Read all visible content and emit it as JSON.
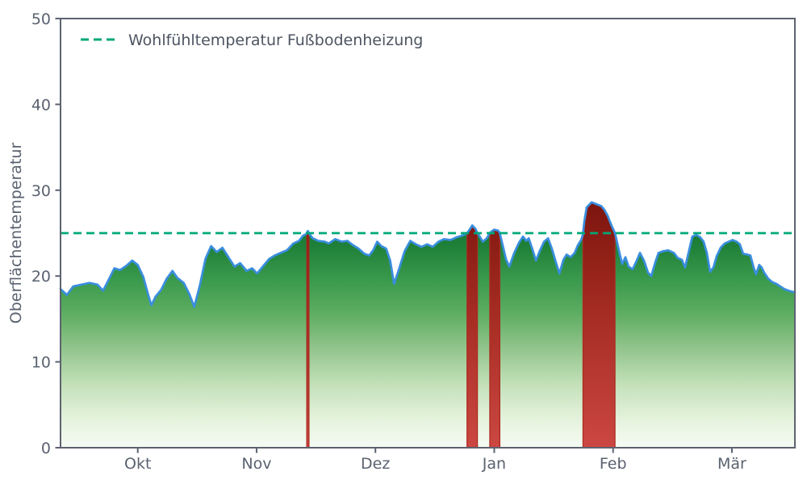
{
  "chart_data": {
    "type": "area",
    "title": "",
    "xlabel": "",
    "ylabel": "Oberflächentemperatur",
    "ylim": [
      0,
      50
    ],
    "yticks": [
      0,
      10,
      20,
      30,
      40,
      50
    ],
    "xtick_labels": [
      "Okt",
      "Nov",
      "Dez",
      "Jan",
      "Feb",
      "Mär"
    ],
    "x_unit": "months relative to Okt tick (0 = Okt, 5 = Mär)",
    "x_range": [
      -0.65,
      5.53
    ],
    "grid": false,
    "legend_position": "upper-left",
    "legend_label": "Wohlfühltemperatur Fußbodenheizung",
    "comfort_line": {
      "value": 25,
      "style": "dashed",
      "color": "#00a878"
    },
    "exceedance_rule": "area filled red from 0 up to curve where temperature > 25",
    "colors": {
      "line": "#3a8ede",
      "comfort": "#00a878",
      "axis": "#5c6370",
      "band_edge": "#aa2a1f",
      "green_gradient": [
        [
          0.0,
          "#0e6a2b"
        ],
        [
          0.18,
          "#1f8039"
        ],
        [
          0.32,
          "#3a9a4d"
        ],
        [
          0.46,
          "#5fae63"
        ],
        [
          0.6,
          "#93c58d"
        ],
        [
          0.74,
          "#c2e0b8"
        ],
        [
          0.88,
          "#e4f2dc"
        ],
        [
          1.0,
          "#f6fbf3"
        ]
      ],
      "red_gradient": [
        [
          0.0,
          "#7c150e"
        ],
        [
          0.45,
          "#a52c22"
        ],
        [
          1.0,
          "#cc4742"
        ]
      ]
    },
    "series": [
      {
        "name": "Oberflächentemperatur",
        "points": [
          [
            -0.65,
            18.5
          ],
          [
            -0.597,
            17.8
          ],
          [
            -0.543,
            18.8
          ],
          [
            -0.475,
            19.0
          ],
          [
            -0.407,
            19.2
          ],
          [
            -0.339,
            19.0
          ],
          [
            -0.292,
            18.3
          ],
          [
            -0.244,
            19.6
          ],
          [
            -0.197,
            20.9
          ],
          [
            -0.149,
            20.7
          ],
          [
            -0.095,
            21.2
          ],
          [
            -0.047,
            21.8
          ],
          [
            0.0,
            21.3
          ],
          [
            0.047,
            19.9
          ],
          [
            0.088,
            17.8
          ],
          [
            0.115,
            16.6
          ],
          [
            0.149,
            17.6
          ],
          [
            0.197,
            18.4
          ],
          [
            0.244,
            19.7
          ],
          [
            0.292,
            20.6
          ],
          [
            0.332,
            19.8
          ],
          [
            0.387,
            19.2
          ],
          [
            0.434,
            17.9
          ],
          [
            0.475,
            16.4
          ],
          [
            0.522,
            18.9
          ],
          [
            0.57,
            22.0
          ],
          [
            0.617,
            23.5
          ],
          [
            0.665,
            22.8
          ],
          [
            0.712,
            23.3
          ],
          [
            0.767,
            22.1
          ],
          [
            0.814,
            21.1
          ],
          [
            0.862,
            21.5
          ],
          [
            0.916,
            20.6
          ],
          [
            0.963,
            20.9
          ],
          [
            1.004,
            20.3
          ],
          [
            1.058,
            21.2
          ],
          [
            1.106,
            22.0
          ],
          [
            1.153,
            22.4
          ],
          [
            1.201,
            22.7
          ],
          [
            1.255,
            23.0
          ],
          [
            1.309,
            23.8
          ],
          [
            1.357,
            24.1
          ],
          [
            1.391,
            24.7
          ],
          [
            1.418,
            24.9
          ],
          [
            1.431,
            25.25
          ],
          [
            1.445,
            24.9
          ],
          [
            1.472,
            24.4
          ],
          [
            1.52,
            24.1
          ],
          [
            1.574,
            24.0
          ],
          [
            1.608,
            23.8
          ],
          [
            1.662,
            24.3
          ],
          [
            1.716,
            24.0
          ],
          [
            1.764,
            24.1
          ],
          [
            1.811,
            23.6
          ],
          [
            1.859,
            23.2
          ],
          [
            1.906,
            22.6
          ],
          [
            1.947,
            22.4
          ],
          [
            1.981,
            23.0
          ],
          [
            2.015,
            24.0
          ],
          [
            2.049,
            23.5
          ],
          [
            2.09,
            23.2
          ],
          [
            2.124,
            21.8
          ],
          [
            2.157,
            19.1
          ],
          [
            2.198,
            20.8
          ],
          [
            2.246,
            22.9
          ],
          [
            2.293,
            24.1
          ],
          [
            2.341,
            23.7
          ],
          [
            2.388,
            23.4
          ],
          [
            2.436,
            23.7
          ],
          [
            2.483,
            23.4
          ],
          [
            2.53,
            24.0
          ],
          [
            2.578,
            24.3
          ],
          [
            2.632,
            24.2
          ],
          [
            2.68,
            24.5
          ],
          [
            2.727,
            24.7
          ],
          [
            2.768,
            24.95
          ],
          [
            2.788,
            25.3
          ],
          [
            2.815,
            25.9
          ],
          [
            2.842,
            25.5
          ],
          [
            2.856,
            25.05
          ],
          [
            2.869,
            24.8
          ],
          [
            2.903,
            24.0
          ],
          [
            2.937,
            24.4
          ],
          [
            2.964,
            25.05
          ],
          [
            2.998,
            25.4
          ],
          [
            3.032,
            25.3
          ],
          [
            3.046,
            25.05
          ],
          [
            3.059,
            24.3
          ],
          [
            3.1,
            21.9
          ],
          [
            3.127,
            21.1
          ],
          [
            3.168,
            22.7
          ],
          [
            3.209,
            23.9
          ],
          [
            3.242,
            24.6
          ],
          [
            3.27,
            24.1
          ],
          [
            3.29,
            24.4
          ],
          [
            3.324,
            23.0
          ],
          [
            3.351,
            21.8
          ],
          [
            3.385,
            23.0
          ],
          [
            3.419,
            24.0
          ],
          [
            3.453,
            24.4
          ],
          [
            3.487,
            23.1
          ],
          [
            3.521,
            21.5
          ],
          [
            3.548,
            20.3
          ],
          [
            3.582,
            21.9
          ],
          [
            3.609,
            22.5
          ],
          [
            3.643,
            22.2
          ],
          [
            3.677,
            22.7
          ],
          [
            3.704,
            23.6
          ],
          [
            3.731,
            24.2
          ],
          [
            3.745,
            24.8
          ],
          [
            3.758,
            26.4
          ],
          [
            3.778,
            28.0
          ],
          [
            3.819,
            28.6
          ],
          [
            3.846,
            28.45
          ],
          [
            3.873,
            28.3
          ],
          [
            3.901,
            28.15
          ],
          [
            3.928,
            27.7
          ],
          [
            3.955,
            27.0
          ],
          [
            3.975,
            26.3
          ],
          [
            3.996,
            25.6
          ],
          [
            4.016,
            25.0
          ],
          [
            4.036,
            23.8
          ],
          [
            4.057,
            22.5
          ],
          [
            4.077,
            21.4
          ],
          [
            4.104,
            22.2
          ],
          [
            4.131,
            21.1
          ],
          [
            4.165,
            20.8
          ],
          [
            4.199,
            21.8
          ],
          [
            4.226,
            22.7
          ],
          [
            4.26,
            21.8
          ],
          [
            4.294,
            20.4
          ],
          [
            4.321,
            20.0
          ],
          [
            4.355,
            21.6
          ],
          [
            4.382,
            22.7
          ],
          [
            4.423,
            22.9
          ],
          [
            4.464,
            23.0
          ],
          [
            4.511,
            22.7
          ],
          [
            4.545,
            22.1
          ],
          [
            4.579,
            21.9
          ],
          [
            4.606,
            21.0
          ],
          [
            4.64,
            23.0
          ],
          [
            4.667,
            24.6
          ],
          [
            4.701,
            24.8
          ],
          [
            4.735,
            24.5
          ],
          [
            4.762,
            24.0
          ],
          [
            4.789,
            22.7
          ],
          [
            4.816,
            20.5
          ],
          [
            4.844,
            21.0
          ],
          [
            4.871,
            22.3
          ],
          [
            4.905,
            23.3
          ],
          [
            4.939,
            23.8
          ],
          [
            4.973,
            24.0
          ],
          [
            5.006,
            24.2
          ],
          [
            5.04,
            24.0
          ],
          [
            5.067,
            23.7
          ],
          [
            5.095,
            22.6
          ],
          [
            5.129,
            22.5
          ],
          [
            5.156,
            22.4
          ],
          [
            5.183,
            21.0
          ],
          [
            5.203,
            20.2
          ],
          [
            5.23,
            21.3
          ],
          [
            5.251,
            21.0
          ],
          [
            5.271,
            20.4
          ],
          [
            5.305,
            19.7
          ],
          [
            5.339,
            19.3
          ],
          [
            5.373,
            19.1
          ],
          [
            5.407,
            18.8
          ],
          [
            5.441,
            18.5
          ],
          [
            5.475,
            18.3
          ],
          [
            5.53,
            18.1
          ]
        ]
      }
    ],
    "exceedance_periods_month_units": [
      [
        1.42,
        1.44
      ],
      [
        2.77,
        2.86
      ],
      [
        2.96,
        3.05
      ],
      [
        3.75,
        4.02
      ]
    ]
  }
}
